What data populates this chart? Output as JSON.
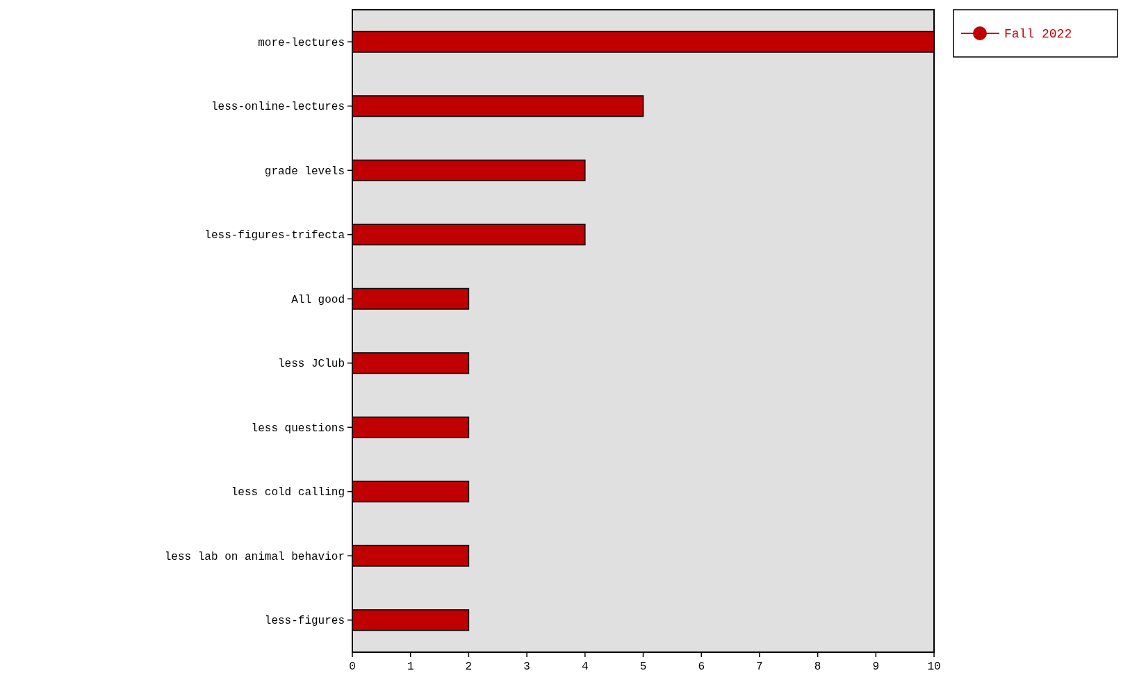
{
  "chart_data": {
    "type": "bar",
    "orientation": "horizontal",
    "categories": [
      "more-lectures",
      "less-online-lectures",
      "grade levels",
      "less-figures-trifecta",
      "All good",
      "less JClub",
      "less questions",
      "less cold calling",
      "less lab on animal behavior",
      "less-figures"
    ],
    "series": [
      {
        "name": "Fall 2022",
        "color": "#c00000",
        "values": [
          10,
          5,
          4,
          4,
          2,
          2,
          2,
          2,
          2,
          2
        ]
      }
    ],
    "xlim": [
      0,
      10
    ],
    "xticks": [
      0,
      1,
      2,
      3,
      4,
      5,
      6,
      7,
      8,
      9,
      10
    ],
    "grid": false,
    "legend": "top right"
  }
}
